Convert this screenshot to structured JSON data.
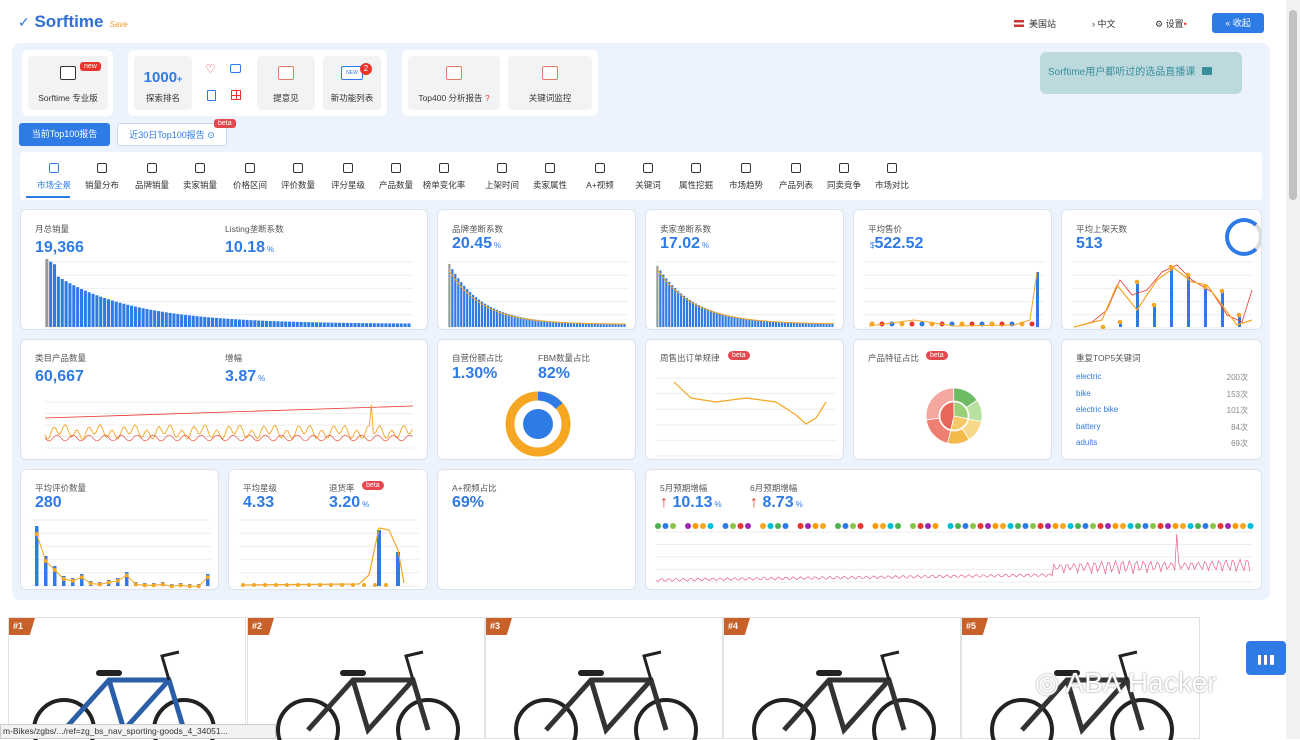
{
  "header": {
    "logo": "Sorftime",
    "logo_sub": "Save",
    "site": "美国站",
    "lang": "中文",
    "settings": "设置",
    "collapse": "收起"
  },
  "quick": {
    "pro": "Sorftime 专业版",
    "pro_tag": "new",
    "search_rank_value": "1000",
    "search_rank_plus": "+",
    "search_rank": "探索排名",
    "feedback": "提意见",
    "new_features": "新功能列表",
    "new_features_badge": "2",
    "top400": "Top400 分析报告",
    "keyword_monitor": "关键词监控"
  },
  "promo": "Sorftime用户都听过的选品直播课",
  "report_tabs": {
    "current": "当前Top100报告",
    "last30": "近30日Top100报告",
    "beta": "beta"
  },
  "tabs": [
    "市场全景",
    "销量分布",
    "品牌销量",
    "卖家销量",
    "价格区间",
    "评价数量",
    "评分星级",
    "产品数量",
    "榜单变化率",
    "上架时间",
    "卖家属性",
    "A+视频",
    "关键词",
    "属性挖掘",
    "市场趋势",
    "产品列表",
    "同卖竞争",
    "市场对比"
  ],
  "metrics": {
    "monthly_sales_label": "月总销量",
    "monthly_sales": "19,366",
    "listing_label": "Listing垄断系数",
    "listing": "10.18",
    "brand_label": "品牌垄断系数",
    "brand": "20.45",
    "seller_label": "卖家垄断系数",
    "seller": "17.02",
    "avg_price_label": "平均售价",
    "currency": "$",
    "avg_price": "522.52",
    "avg_days_label": "平均上架天数",
    "avg_days": "513",
    "cat_count_label": "类目产品数量",
    "cat_count": "60,667",
    "growth_label": "增幅",
    "growth": "3.87",
    "self_label": "自营份额占比",
    "self": "1.30%",
    "fbm_label": "FBM数量占比",
    "fbm": "82%",
    "weekly_label": "周售出订单规律",
    "feature_label": "产品特征占比",
    "beta": "beta",
    "top5_label": "重复TOP5关键词",
    "avg_reviews_label": "平均评价数量",
    "avg_reviews": "280",
    "avg_rating_label": "平均星级",
    "avg_rating": "4.33",
    "return_label": "退货率",
    "return": "3.20",
    "aplus_label": "A+视频占比",
    "aplus": "69%",
    "may_label": "5月预期增幅",
    "may": "10.13",
    "jun_label": "6月预期增幅",
    "jun": "8.73",
    "pct": "%",
    "arrow": "↑"
  },
  "keywords": [
    {
      "kw": "electric",
      "count": "200次"
    },
    {
      "kw": "bike",
      "count": "153次"
    },
    {
      "kw": "electric bike",
      "count": "101次"
    },
    {
      "kw": "battery",
      "count": "84次"
    },
    {
      "kw": "adults",
      "count": "69次"
    }
  ],
  "products": [
    "#1",
    "#2",
    "#3",
    "#4",
    "#5"
  ],
  "status_url": "m-Bikes/zgbs/.../ref=zg_bs_nav_sporting-goods_4_34051...",
  "watermark": "ABA Hacker",
  "colors": {
    "accent": "#2f7be6",
    "orange": "#f5a623",
    "red": "#e8352e"
  }
}
